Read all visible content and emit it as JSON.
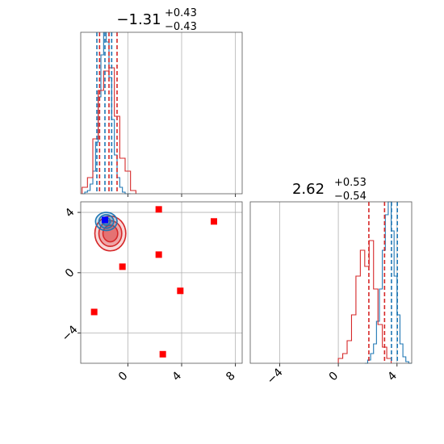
{
  "chart_data": {
    "type": "corner",
    "grid": true,
    "colors": {
      "blue": "#1f77b4",
      "red": "#d62728",
      "marker_red": "#ff0000",
      "marker_blue": "#0000ff",
      "grid": "#b0b0b0"
    },
    "panels": [
      {
        "id": "hist_x",
        "type": "histogram",
        "title": {
          "main": "−1.31",
          "sup": "+0.43",
          "sub": "−0.43"
        },
        "xlim": [
          -3.5,
          8.5
        ],
        "ylim": [
          0,
          1
        ],
        "xticks": [
          0,
          4,
          8
        ],
        "ytick_labels": false,
        "series": [
          {
            "name": "",
            "color": "#1f77b4",
            "bins": [
              -3.4,
              -3.2,
              -3.0,
              -2.8,
              -2.6,
              -2.4,
              -2.2,
              -2.0,
              -1.8,
              -1.6,
              -1.4,
              -1.2,
              -1.0,
              -0.8,
              -0.6,
              -0.4,
              -0.2,
              0.0,
              0.2
            ],
            "values": [
              0.0,
              0.01,
              0.02,
              0.06,
              0.14,
              0.32,
              0.6,
              0.86,
              1.0,
              0.94,
              0.72,
              0.46,
              0.24,
              0.1,
              0.04,
              0.01,
              0.0,
              0.0
            ]
          },
          {
            "name": "",
            "color": "#d62728",
            "bins": [
              -3.4,
              -3.0,
              -2.6,
              -2.2,
              -1.8,
              -1.4,
              -1.0,
              -0.6,
              -0.2,
              0.2,
              0.6
            ],
            "values": [
              0.04,
              0.1,
              0.34,
              0.64,
              0.76,
              0.78,
              0.48,
              0.22,
              0.14,
              0.02
            ]
          }
        ],
        "vlines": [
          {
            "color": "#1f77b4",
            "x": [
              -2.3,
              -1.7,
              -1.2
            ]
          },
          {
            "color": "#d62728",
            "x": [
              -2.1,
              -1.4,
              -0.8
            ]
          }
        ]
      },
      {
        "id": "hist_y",
        "type": "histogram",
        "title": {
          "main": "2.62",
          "sup": "+0.53",
          "sub": "−0.54"
        },
        "xlim": [
          -6,
          5
        ],
        "ylim": [
          0,
          1
        ],
        "xticks": [
          -4,
          0,
          4
        ],
        "ytick_labels": false,
        "series": [
          {
            "name": "",
            "color": "#1f77b4",
            "bins": [
              1.8,
              2.0,
              2.2,
              2.4,
              2.6,
              2.8,
              3.0,
              3.2,
              3.4,
              3.6,
              3.8,
              4.0,
              4.2,
              4.4,
              4.6,
              4.8,
              5.0
            ],
            "values": [
              0.0,
              0.02,
              0.06,
              0.12,
              0.26,
              0.46,
              0.7,
              0.92,
              1.0,
              0.82,
              0.54,
              0.3,
              0.12,
              0.04,
              0.01,
              0.0
            ]
          },
          {
            "name": "",
            "color": "#d62728",
            "bins": [
              0.0,
              0.3,
              0.6,
              0.9,
              1.2,
              1.5,
              1.8,
              2.1,
              2.4,
              2.7,
              3.0,
              3.3,
              3.6
            ],
            "values": [
              0.03,
              0.06,
              0.14,
              0.3,
              0.54,
              0.7,
              0.6,
              0.76,
              0.46,
              0.24,
              0.1,
              0.03
            ]
          }
        ],
        "vlines": [
          {
            "color": "#d62728",
            "x": [
              2.08,
              3.15
            ]
          },
          {
            "color": "#1f77b4",
            "x": [
              3.62,
              4.02
            ]
          }
        ]
      },
      {
        "id": "scatter_xy",
        "type": "scatter",
        "xlim": [
          -3.5,
          8.5
        ],
        "ylim": [
          -6,
          4.7
        ],
        "xticks": [
          0,
          4,
          8
        ],
        "yticks": [
          -4,
          0,
          4
        ],
        "contours": [
          {
            "color": "#d62728",
            "cx": -1.3,
            "cy": 2.6,
            "rx": [
              0.55,
              0.85,
              1.15
            ],
            "ry": [
              0.55,
              0.85,
              1.15
            ]
          },
          {
            "color": "#1f77b4",
            "cx": -1.6,
            "cy": 3.4,
            "rx": [
              0.3,
              0.55,
              0.8
            ],
            "ry": [
              0.25,
              0.45,
              0.6
            ]
          }
        ],
        "markers": [
          {
            "color": "#ff0000",
            "points": [
              [
                -2.5,
                -2.6
              ],
              [
                -0.4,
                0.4
              ],
              [
                2.3,
                4.2
              ],
              [
                2.3,
                1.2
              ],
              [
                3.9,
                -1.2
              ],
              [
                2.6,
                -5.4
              ],
              [
                6.4,
                3.4
              ]
            ]
          },
          {
            "color": "#0000ff",
            "points": [
              [
                -1.7,
                3.5
              ]
            ]
          }
        ]
      }
    ]
  }
}
